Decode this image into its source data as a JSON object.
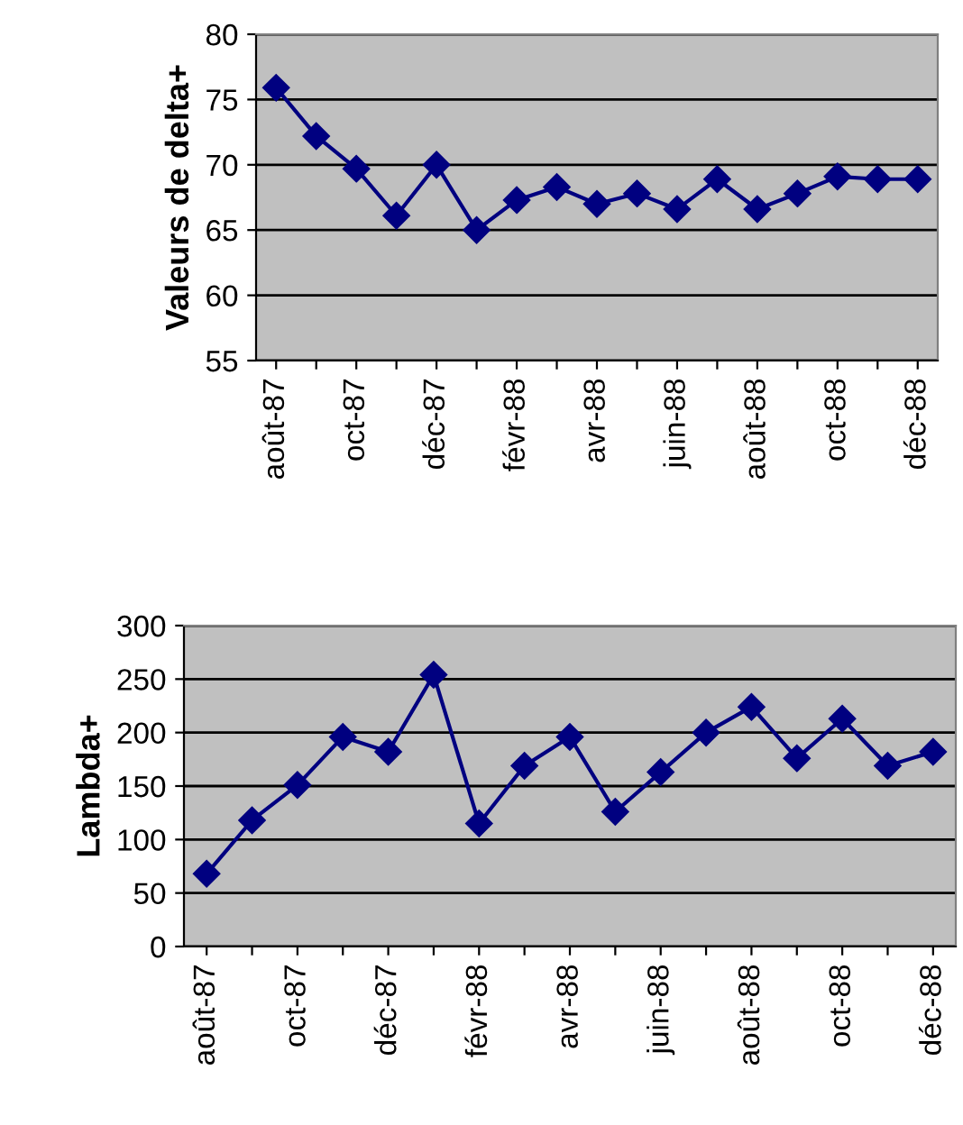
{
  "chart_data": [
    {
      "type": "line",
      "ylabel": "Valeurs de delta+",
      "categories": [
        "août-87",
        null,
        "oct-87",
        null,
        "déc-87",
        null,
        "févr-88",
        null,
        "avr-88",
        null,
        "juin-88",
        null,
        "août-88",
        null,
        "oct-88",
        null,
        "déc-88"
      ],
      "series": [
        {
          "color": "#000080",
          "values": [
            75.9,
            72.2,
            69.7,
            66.1,
            70,
            65,
            67.3,
            68.3,
            67,
            67.8,
            66.6,
            68.9,
            66.6,
            67.8,
            69.1,
            68.9,
            68.9
          ]
        }
      ],
      "ylim": [
        55,
        80
      ],
      "yticks": [
        55,
        60,
        65,
        70,
        75,
        80
      ],
      "grid": "y",
      "marker": "diamond",
      "line_style": "solid"
    },
    {
      "type": "line",
      "ylabel": "Lambda+",
      "categories": [
        "août-87",
        null,
        "oct-87",
        null,
        "déc-87",
        null,
        "févr-88",
        null,
        "avr-88",
        null,
        "juin-88",
        null,
        "août-88",
        null,
        "oct-88",
        null,
        "déc-88"
      ],
      "series": [
        {
          "color": "#000080",
          "values": [
            68,
            118,
            151,
            196,
            182,
            254,
            115,
            169,
            196,
            126,
            163,
            200,
            224,
            176,
            213,
            169,
            182
          ]
        }
      ],
      "ylim": [
        0,
        300
      ],
      "yticks": [
        0,
        50,
        100,
        150,
        200,
        250,
        300
      ],
      "grid": "y",
      "marker": "diamond",
      "line_style": "solid"
    }
  ]
}
